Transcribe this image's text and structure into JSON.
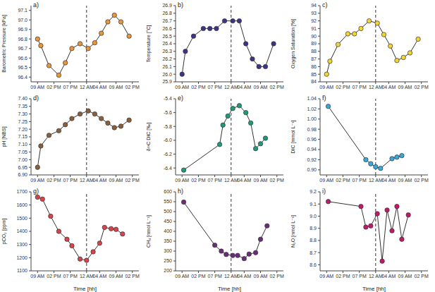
{
  "chart_data": [
    {
      "type": "line",
      "panel": "a)",
      "y_label": "Barometric Pressure [kPa]",
      "color": "#e8963a",
      "marker": "circle",
      "reference_x": 15,
      "x": [
        0,
        1,
        3.5,
        6.5,
        8.5,
        10.5,
        13,
        15.5,
        17.5,
        19.5,
        21.5,
        23.5,
        25.5,
        28
      ],
      "values": [
        96.8,
        96.73,
        96.52,
        96.42,
        96.55,
        96.7,
        96.75,
        96.7,
        96.76,
        96.86,
        96.98,
        97.05,
        96.98,
        96.83
      ],
      "xlim": [
        -2,
        31
      ],
      "xticks": [
        {
          "value": 0,
          "label": "09 AM"
        },
        {
          "value": 5,
          "label": "02 PM"
        },
        {
          "value": 10,
          "label": "07 PM"
        },
        {
          "value": 15,
          "label": "12 AM"
        },
        {
          "value": 19,
          "label": "04 AM"
        },
        {
          "value": 24,
          "label": "09 AM"
        },
        {
          "value": 29,
          "label": "02 PM"
        }
      ],
      "ylim": [
        96.35,
        97.15
      ],
      "yticks": [
        96.4,
        96.5,
        96.6,
        96.7,
        96.8,
        96.9,
        {
          "value": 97,
          "label": "97.0"
        },
        97.1
      ]
    },
    {
      "type": "line",
      "panel": "b)",
      "y_label": "Temperature [°C]",
      "color": "#3b3486",
      "marker": "circle",
      "reference_x": 15,
      "x": [
        0,
        1,
        3.5,
        6.5,
        8.5,
        10.5,
        13,
        15.5,
        17.5,
        19.5,
        21.5,
        23.5,
        25.5,
        28
      ],
      "values": [
        26.0,
        26.3,
        26.5,
        26.6,
        26.6,
        26.6,
        26.7,
        26.7,
        26.7,
        26.4,
        26.2,
        26.1,
        26.1,
        26.4
      ],
      "xlim": [
        -2,
        31
      ],
      "xticks": [
        {
          "value": 0,
          "label": "09 AM"
        },
        {
          "value": 5,
          "label": "02 PM"
        },
        {
          "value": 10,
          "label": "07 PM"
        },
        {
          "value": 15,
          "label": "12 AM"
        },
        {
          "value": 19,
          "label": "04 AM"
        },
        {
          "value": 24,
          "label": "09 AM"
        },
        {
          "value": 29,
          "label": "02 PM"
        }
      ],
      "ylim": [
        25.9,
        26.9
      ],
      "yticks": [
        25.9,
        {
          "value": 26,
          "label": "26.0"
        },
        26.1,
        26.2,
        26.3,
        26.4,
        26.5,
        26.6,
        26.7,
        26.8,
        26.9
      ]
    },
    {
      "type": "line",
      "panel": "c)",
      "y_label": "Oxygen Saturation [%]",
      "color": "#f2d52e",
      "marker": "circle",
      "reference_x": 15,
      "x": [
        0,
        1,
        3.5,
        6.5,
        8.5,
        10.5,
        13,
        15.5,
        17.5,
        19.5,
        21.5,
        23.5,
        25.5,
        28
      ],
      "values": [
        85,
        86.7,
        88.9,
        90.3,
        90.3,
        91,
        92,
        91.7,
        90.2,
        88.7,
        86.8,
        87.2,
        87.8,
        89.6
      ],
      "xlim": [
        -2,
        31
      ],
      "xticks": [
        {
          "value": 0,
          "label": "09 AM"
        },
        {
          "value": 5,
          "label": "02 PM"
        },
        {
          "value": 10,
          "label": "07 PM"
        },
        {
          "value": 15,
          "label": "12 AM"
        },
        {
          "value": 19,
          "label": "04 AM"
        },
        {
          "value": 24,
          "label": "09 AM"
        },
        {
          "value": 29,
          "label": "02 PM"
        }
      ],
      "ylim": [
        84,
        94
      ],
      "yticks": [
        84,
        85,
        86,
        87,
        88,
        89,
        90,
        91,
        92,
        93,
        94
      ]
    },
    {
      "type": "line",
      "panel": "d)",
      "y_label": "pH [NBS]",
      "color": "#8b5e3c",
      "marker": "circle",
      "reference_x": 15,
      "x": [
        0,
        1,
        3.5,
        6.5,
        8.5,
        10.5,
        13,
        15.5,
        17.5,
        19.5,
        21.5,
        23.5,
        25.5,
        28
      ],
      "values": [
        6.95,
        7.09,
        7.16,
        7.19,
        7.23,
        7.27,
        7.3,
        7.32,
        7.3,
        7.27,
        7.24,
        7.21,
        7.22,
        7.26
      ],
      "xlim": [
        -2,
        31
      ],
      "xticks": [
        {
          "value": 0,
          "label": "09 AM"
        },
        {
          "value": 5,
          "label": "02 PM"
        },
        {
          "value": 10,
          "label": "07 PM"
        },
        {
          "value": 15,
          "label": "12 AM"
        },
        {
          "value": 19,
          "label": "04 AM"
        },
        {
          "value": 24,
          "label": "09 AM"
        },
        {
          "value": 29,
          "label": "02 PM"
        }
      ],
      "ylim": [
        6.9,
        7.4
      ],
      "yticks": [
        {
          "value": 6.9,
          "label": "6.90"
        },
        6.95,
        {
          "value": 7,
          "label": "7.00"
        },
        7.05,
        {
          "value": 7.1,
          "label": "7.10"
        },
        7.15,
        {
          "value": 7.2,
          "label": "7.20"
        },
        7.25,
        {
          "value": 7.3,
          "label": "7.30"
        },
        7.35,
        {
          "value": 7.4,
          "label": "7.40"
        }
      ]
    },
    {
      "type": "line",
      "panel": "e)",
      "y_label": "δ¹³C DIC [‰]",
      "color": "#1f9a7a",
      "marker": "circle",
      "reference_x": 15,
      "x": [
        0.5,
        11.5,
        12.5,
        14,
        15.5,
        17.5,
        19.5,
        21,
        22.5,
        24,
        25.5
      ],
      "values": [
        -6.43,
        -6.06,
        -5.78,
        -5.65,
        -5.54,
        -5.5,
        -5.6,
        -5.75,
        -6.12,
        -6.05,
        -5.97
      ],
      "xlim": [
        -2,
        31
      ],
      "xticks": [
        {
          "value": 0,
          "label": "09 AM"
        },
        {
          "value": 5,
          "label": "02 PM"
        },
        {
          "value": 10,
          "label": "07 PM"
        },
        {
          "value": 15,
          "label": "12 AM"
        },
        {
          "value": 19,
          "label": "04 AM"
        },
        {
          "value": 24,
          "label": "09 AM"
        },
        {
          "value": 29,
          "label": "02 PM"
        }
      ],
      "ylim": [
        -6.5,
        -5.4
      ],
      "yticks": [
        -6.4,
        -6.2,
        {
          "value": -6,
          "label": "-6.0"
        },
        -5.8,
        -5.6,
        -5.4
      ]
    },
    {
      "type": "line",
      "panel": "f)",
      "y_label": "DIC [mmol L⁻¹]",
      "color": "#3aa7d8",
      "marker": "circle",
      "reference_x": 15,
      "x": [
        0.5,
        12,
        13.5,
        15,
        16.5,
        20,
        21.5,
        23
      ],
      "values": [
        1.025,
        0.92,
        0.912,
        0.906,
        0.903,
        0.922,
        0.925,
        0.928
      ],
      "xlim": [
        -2,
        31
      ],
      "xticks": [
        {
          "value": 0,
          "label": "09 AM"
        },
        {
          "value": 5,
          "label": "02 PM"
        },
        {
          "value": 10,
          "label": "07 PM"
        },
        {
          "value": 15,
          "label": "12 AM"
        },
        {
          "value": 19,
          "label": "04 AM"
        },
        {
          "value": 24,
          "label": "09 AM"
        },
        {
          "value": 29,
          "label": "02 PM"
        }
      ],
      "ylim": [
        0.89,
        1.04
      ],
      "yticks": [
        {
          "value": 0.9,
          "label": "0.90"
        },
        0.92,
        0.94,
        0.96,
        0.98,
        {
          "value": 1,
          "label": "1.00"
        },
        1.02,
        1.04
      ]
    },
    {
      "type": "line",
      "panel": "g)",
      "y_label": "pCO₂ [ppm]",
      "x_label": "Time [hh]",
      "color": "#d9434b",
      "marker": "circle",
      "reference_x": 15,
      "x": [
        0,
        1.5,
        4,
        6.5,
        9,
        10.5,
        13,
        15,
        17,
        19,
        20.5,
        22.5,
        24,
        26
      ],
      "values": [
        1660,
        1645,
        1515,
        1400,
        1340,
        1290,
        1190,
        1180,
        1245,
        1310,
        1430,
        1420,
        1415,
        1380
      ],
      "xlim": [
        -2,
        31
      ],
      "xticks": [
        {
          "value": 0,
          "label": "09 AM"
        },
        {
          "value": 5,
          "label": "02 PM"
        },
        {
          "value": 10,
          "label": "07 PM"
        },
        {
          "value": 15,
          "label": "12 AM"
        },
        {
          "value": 19,
          "label": "04 AM"
        },
        {
          "value": 24,
          "label": "09 AM"
        },
        {
          "value": 29,
          "label": "02 PM"
        }
      ],
      "ylim": [
        1100,
        1700
      ],
      "yticks": [
        1100,
        1200,
        1300,
        1400,
        1500,
        1600,
        1700
      ]
    },
    {
      "type": "line",
      "panel": "h)",
      "y_label": "CH₄ [nmol L⁻¹]",
      "x_label": "Time [hh]",
      "color": "#6b2d7a",
      "marker": "circle",
      "reference_x": 15,
      "x": [
        0.5,
        10,
        12,
        13.5,
        15.5,
        17,
        19,
        20.5,
        22.5,
        24,
        26
      ],
      "values": [
        548,
        330,
        300,
        283,
        278,
        278,
        262,
        285,
        292,
        360,
        428
      ],
      "xlim": [
        -2,
        31
      ],
      "xticks": [
        {
          "value": 0,
          "label": "09 AM"
        },
        {
          "value": 5,
          "label": "02 PM"
        },
        {
          "value": 10,
          "label": "07 PM"
        },
        {
          "value": 15,
          "label": "12 AM"
        },
        {
          "value": 19,
          "label": "04 AM"
        },
        {
          "value": 24,
          "label": "09 AM"
        },
        {
          "value": 29,
          "label": "02 PM"
        }
      ],
      "ylim": [
        200,
        600
      ],
      "yticks": [
        200,
        250,
        300,
        350,
        400,
        450,
        500,
        550,
        600
      ]
    },
    {
      "type": "line",
      "panel": "i)",
      "y_label": "N₂O [nmol L⁻¹]",
      "x_label": "Time [hh]",
      "color": "#c2186b",
      "marker": "circle",
      "reference_x": 15,
      "x": [
        0.5,
        10.5,
        12,
        13.5,
        15.5,
        17,
        18.5,
        20,
        21.5,
        23,
        25
      ],
      "values": [
        9.12,
        9.08,
        8.91,
        8.92,
        9.02,
        8.63,
        9.05,
        8.88,
        9.08,
        8.81,
        9.01
      ],
      "xlim": [
        -2,
        31
      ],
      "xticks": [
        {
          "value": 0,
          "label": "09 AM"
        },
        {
          "value": 5,
          "label": "02 PM"
        },
        {
          "value": 10,
          "label": "07 PM"
        },
        {
          "value": 15,
          "label": "12 AM"
        },
        {
          "value": 19,
          "label": "04 AM"
        },
        {
          "value": 24,
          "label": "09 AM"
        },
        {
          "value": 29,
          "label": "02 PM"
        }
      ],
      "ylim": [
        8.55,
        9.2
      ],
      "yticks": [
        8.6,
        8.7,
        8.8,
        8.9,
        {
          "value": 9,
          "label": "9.0"
        },
        9.1,
        9.2
      ]
    }
  ]
}
